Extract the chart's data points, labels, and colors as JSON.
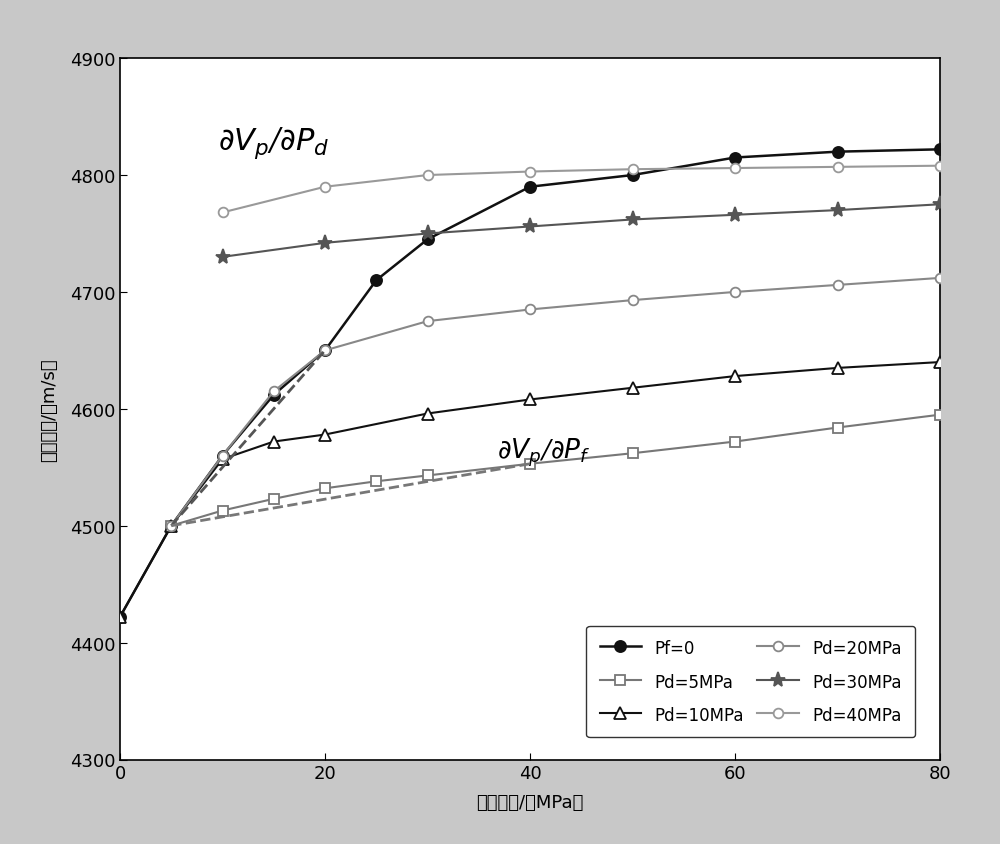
{
  "xlabel": "有效压力/（MPa）",
  "ylabel": "纵波速度/（m/s）",
  "xlim": [
    0,
    80
  ],
  "ylim": [
    4300,
    4900
  ],
  "xticks": [
    0,
    20,
    40,
    60,
    80
  ],
  "yticks": [
    4300,
    4400,
    4500,
    4600,
    4700,
    4800,
    4900
  ],
  "series": [
    {
      "label": "Pf=0",
      "x": [
        0,
        5,
        10,
        15,
        20,
        25,
        30,
        40,
        50,
        60,
        70,
        80
      ],
      "y": [
        4422,
        4500,
        4560,
        4612,
        4650,
        4710,
        4745,
        4790,
        4800,
        4815,
        4820,
        4822
      ],
      "color": "#111111",
      "marker": "o",
      "marker_filled": true,
      "linestyle": "-",
      "linewidth": 1.8,
      "markersize": 8
    },
    {
      "label": "Pd=5MPa",
      "x": [
        5,
        10,
        15,
        20,
        25,
        30,
        40,
        50,
        60,
        70,
        80
      ],
      "y": [
        4500,
        4513,
        4523,
        4532,
        4538,
        4543,
        4553,
        4562,
        4572,
        4584,
        4595
      ],
      "color": "#777777",
      "marker": "s",
      "marker_filled": false,
      "linestyle": "-",
      "linewidth": 1.5,
      "markersize": 7
    },
    {
      "label": "Pd=10MPa",
      "x": [
        0,
        5,
        10,
        15,
        20,
        30,
        40,
        50,
        60,
        70,
        80
      ],
      "y": [
        4422,
        4500,
        4557,
        4572,
        4578,
        4596,
        4608,
        4618,
        4628,
        4635,
        4640
      ],
      "color": "#111111",
      "marker": "^",
      "marker_filled": false,
      "linestyle": "-",
      "linewidth": 1.5,
      "markersize": 8
    },
    {
      "label": "Pd=20MPa",
      "x": [
        5,
        10,
        15,
        20,
        30,
        40,
        50,
        60,
        70,
        80
      ],
      "y": [
        4500,
        4560,
        4615,
        4650,
        4675,
        4685,
        4693,
        4700,
        4706,
        4712
      ],
      "color": "#888888",
      "marker": "o",
      "marker_filled": false,
      "linestyle": "-",
      "linewidth": 1.5,
      "markersize": 7
    },
    {
      "label": "Pd=30MPa",
      "x": [
        10,
        20,
        30,
        40,
        50,
        60,
        70,
        80
      ],
      "y": [
        4730,
        4742,
        4750,
        4756,
        4762,
        4766,
        4770,
        4775
      ],
      "color": "#555555",
      "marker": "*",
      "marker_filled": true,
      "linestyle": "-",
      "linewidth": 1.5,
      "markersize": 11
    },
    {
      "label": "Pd=40MPa",
      "x": [
        10,
        20,
        30,
        40,
        50,
        60,
        70,
        80
      ],
      "y": [
        4768,
        4790,
        4800,
        4803,
        4805,
        4806,
        4807,
        4808
      ],
      "color": "#999999",
      "marker": "o",
      "marker_filled": false,
      "linestyle": "-",
      "linewidth": 1.5,
      "markersize": 7
    }
  ],
  "dashed_line_dvd": {
    "x": [
      5,
      20
    ],
    "y": [
      4500,
      4650
    ],
    "color": "#555555",
    "linestyle": "--",
    "linewidth": 2.0
  },
  "dashed_line_dvf": {
    "x": [
      5,
      40
    ],
    "y": [
      4500,
      4553
    ],
    "color": "#777777",
    "linestyle": "--",
    "linewidth": 2.0
  },
  "fig_bg_color": "#c8c8c8",
  "ax_bg_color": "#ffffff",
  "border_color": "#000000"
}
